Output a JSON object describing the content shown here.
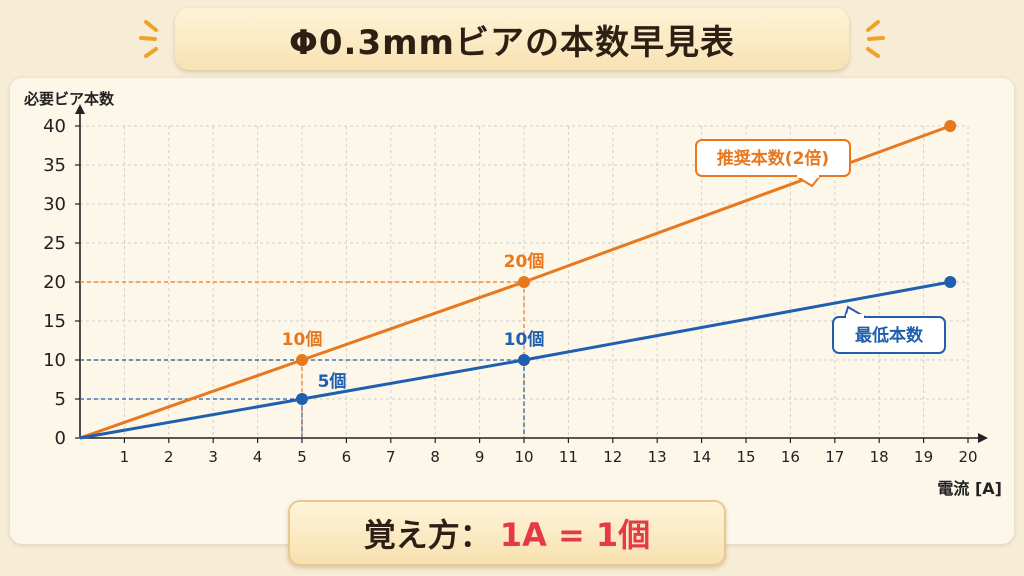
{
  "title": "Φ0.3mmビアの本数早見表",
  "caption": {
    "prefix": "覚え方：",
    "formula": "1A = 1個"
  },
  "colors": {
    "orange": "#e8781e",
    "blue": "#1f5fae",
    "grid": "#cfcfcf",
    "text": "#2e1f14",
    "accent": "#e63946"
  },
  "chart_data": {
    "type": "line",
    "ylabel": "必要ビア本数",
    "xlabel": "電流 [A]",
    "xlim": [
      0,
      20
    ],
    "ylim": [
      0,
      40
    ],
    "x_ticks": [
      1,
      2,
      3,
      4,
      5,
      6,
      7,
      8,
      9,
      10,
      11,
      12,
      13,
      14,
      15,
      16,
      17,
      18,
      19,
      20
    ],
    "y_ticks": [
      0,
      5,
      10,
      15,
      20,
      25,
      30,
      35,
      40
    ],
    "grid": true,
    "series": [
      {
        "name": "推奨本数(2倍)",
        "color": "#e8781e",
        "points": [
          [
            0,
            0
          ],
          [
            5,
            10
          ],
          [
            10,
            20
          ],
          [
            19.6,
            40
          ]
        ],
        "markers": [
          [
            5,
            10
          ],
          [
            10,
            20
          ],
          [
            19.6,
            40
          ]
        ],
        "annotations": [
          {
            "x": 5,
            "y": 10,
            "text": "10個"
          },
          {
            "x": 10,
            "y": 20,
            "text": "20個"
          }
        ]
      },
      {
        "name": "最低本数",
        "color": "#1f5fae",
        "points": [
          [
            0,
            0
          ],
          [
            5,
            5
          ],
          [
            10,
            10
          ],
          [
            19.6,
            20
          ]
        ],
        "markers": [
          [
            5,
            5
          ],
          [
            10,
            10
          ],
          [
            19.6,
            20
          ]
        ],
        "annotations": [
          {
            "x": 5,
            "y": 5,
            "text": "5個"
          },
          {
            "x": 10,
            "y": 10,
            "text": "10個"
          }
        ]
      }
    ]
  }
}
